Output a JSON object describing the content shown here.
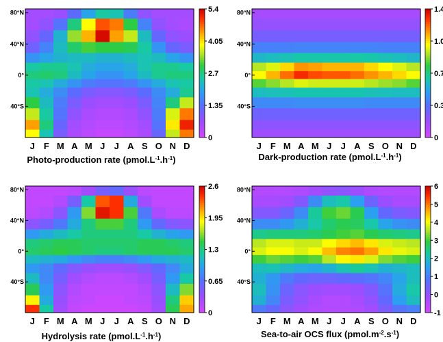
{
  "chart_data": [
    {
      "type": "heatmap",
      "title_parts": [
        "Photo-production rate (pmol.L",
        "-1",
        ".h",
        "-1",
        ")"
      ],
      "x": [
        "J",
        "F",
        "M",
        "A",
        "M",
        "J",
        "J",
        "A",
        "S",
        "O",
        "N",
        "D"
      ],
      "ylabels": [
        "80°N",
        "40°N",
        "0°",
        "40°S"
      ],
      "colorbar_ticks": [
        "5.4",
        "4.05",
        "2.7",
        "1.35",
        "0"
      ],
      "vmin": 0,
      "vmax": 5.4,
      "rows_lat": [
        80,
        65,
        50,
        35,
        22,
        10,
        0,
        -10,
        -22,
        -35,
        -50,
        -65,
        -75
      ],
      "values": [
        [
          0.6,
          0.6,
          0.7,
          1.3,
          2.0,
          2.5,
          2.4,
          1.5,
          0.8,
          0.6,
          0.6,
          0.6
        ],
        [
          0.6,
          0.8,
          1.4,
          2.7,
          3.9,
          4.8,
          4.6,
          3.0,
          1.6,
          0.8,
          0.6,
          0.5
        ],
        [
          0.8,
          1.2,
          2.2,
          3.4,
          4.3,
          5.3,
          4.4,
          3.6,
          2.3,
          1.2,
          0.8,
          0.7
        ],
        [
          1.1,
          1.6,
          2.3,
          2.8,
          3.1,
          3.0,
          3.0,
          2.9,
          2.5,
          1.8,
          1.2,
          1.0
        ],
        [
          1.8,
          2.0,
          2.2,
          2.3,
          2.3,
          2.2,
          2.2,
          2.3,
          2.4,
          2.3,
          2.0,
          1.8
        ],
        [
          2.5,
          2.6,
          2.6,
          2.4,
          2.1,
          2.0,
          2.0,
          2.1,
          2.4,
          2.6,
          2.6,
          2.5
        ],
        [
          2.7,
          2.8,
          2.7,
          2.3,
          2.0,
          1.8,
          1.8,
          2.0,
          2.3,
          2.6,
          2.7,
          2.7
        ],
        [
          2.5,
          2.4,
          2.1,
          1.8,
          1.5,
          1.4,
          1.4,
          1.5,
          1.8,
          2.1,
          2.4,
          2.5
        ],
        [
          2.4,
          2.1,
          1.7,
          1.3,
          1.0,
          0.9,
          0.9,
          1.0,
          1.3,
          1.7,
          2.1,
          2.6
        ],
        [
          3.0,
          2.3,
          1.5,
          1.0,
          0.7,
          0.6,
          0.6,
          0.7,
          1.0,
          1.6,
          2.7,
          3.6
        ],
        [
          3.6,
          2.5,
          1.4,
          0.8,
          0.5,
          0.4,
          0.4,
          0.5,
          0.8,
          1.5,
          3.7,
          4.6
        ],
        [
          4.4,
          2.7,
          1.2,
          0.6,
          0.4,
          0.3,
          0.3,
          0.4,
          0.6,
          1.4,
          4.0,
          5.1
        ],
        [
          3.9,
          2.4,
          1.0,
          0.5,
          0.3,
          0.2,
          0.2,
          0.3,
          0.5,
          1.2,
          3.6,
          4.6
        ]
      ]
    },
    {
      "type": "heatmap",
      "title_parts": [
        "Dark-production rate (pmol.L",
        "-1",
        ".h",
        "-1",
        ")"
      ],
      "x": [
        "J",
        "F",
        "M",
        "A",
        "M",
        "J",
        "J",
        "A",
        "S",
        "O",
        "N",
        "D"
      ],
      "ylabels": [
        "80°N",
        "40°N",
        "0°",
        "40°S"
      ],
      "colorbar_ticks": [
        "1.45",
        "1.08",
        "0.72",
        "0.36",
        "0"
      ],
      "vmin": 0,
      "vmax": 1.45,
      "rows_lat": [
        80,
        65,
        50,
        35,
        22,
        10,
        0,
        -10,
        -22,
        -35,
        -50,
        -65,
        -75
      ],
      "values": [
        [
          0.15,
          0.15,
          0.15,
          0.15,
          0.15,
          0.15,
          0.15,
          0.15,
          0.15,
          0.15,
          0.15,
          0.15
        ],
        [
          0.2,
          0.2,
          0.2,
          0.2,
          0.2,
          0.2,
          0.2,
          0.2,
          0.2,
          0.2,
          0.2,
          0.2
        ],
        [
          0.28,
          0.28,
          0.28,
          0.28,
          0.28,
          0.28,
          0.28,
          0.28,
          0.28,
          0.28,
          0.28,
          0.28
        ],
        [
          0.42,
          0.42,
          0.42,
          0.43,
          0.43,
          0.43,
          0.43,
          0.43,
          0.43,
          0.42,
          0.42,
          0.42
        ],
        [
          0.6,
          0.62,
          0.64,
          0.66,
          0.66,
          0.66,
          0.66,
          0.67,
          0.66,
          0.64,
          0.62,
          0.6
        ],
        [
          0.95,
          1.0,
          1.1,
          1.2,
          1.18,
          1.15,
          1.15,
          1.15,
          1.1,
          1.05,
          1.0,
          0.95
        ],
        [
          1.05,
          1.15,
          1.25,
          1.35,
          1.3,
          1.28,
          1.28,
          1.25,
          1.2,
          1.15,
          1.1,
          1.05
        ],
        [
          0.85,
          0.9,
          0.95,
          1.0,
          0.98,
          0.98,
          0.98,
          0.98,
          0.95,
          0.92,
          0.9,
          0.85
        ],
        [
          0.62,
          0.63,
          0.64,
          0.65,
          0.65,
          0.65,
          0.65,
          0.65,
          0.64,
          0.63,
          0.62,
          0.62
        ],
        [
          0.45,
          0.45,
          0.45,
          0.46,
          0.46,
          0.46,
          0.46,
          0.46,
          0.45,
          0.45,
          0.45,
          0.45
        ],
        [
          0.3,
          0.3,
          0.3,
          0.3,
          0.3,
          0.3,
          0.3,
          0.3,
          0.3,
          0.3,
          0.3,
          0.3
        ],
        [
          0.22,
          0.22,
          0.22,
          0.22,
          0.22,
          0.22,
          0.22,
          0.22,
          0.22,
          0.22,
          0.22,
          0.22
        ],
        [
          0.18,
          0.18,
          0.18,
          0.18,
          0.18,
          0.18,
          0.18,
          0.18,
          0.18,
          0.18,
          0.18,
          0.18
        ]
      ]
    },
    {
      "type": "heatmap",
      "title_parts": [
        "Hydrolysis rate (pmol.L",
        "-1",
        ".h",
        "-1",
        ")"
      ],
      "x": [
        "J",
        "F",
        "M",
        "A",
        "M",
        "J",
        "J",
        "A",
        "S",
        "O",
        "N",
        "D"
      ],
      "ylabels": [
        "80°N",
        "40°N",
        "0°",
        "40°S"
      ],
      "colorbar_ticks": [
        "2.6",
        "1.95",
        "1.3",
        "0.65",
        "0"
      ],
      "vmin": 0,
      "vmax": 2.6,
      "rows_lat": [
        80,
        65,
        50,
        35,
        22,
        10,
        0,
        -10,
        -22,
        -35,
        -50,
        -65,
        -75
      ],
      "values": [
        [
          0.1,
          0.1,
          0.1,
          0.15,
          0.3,
          0.5,
          0.6,
          0.35,
          0.15,
          0.1,
          0.1,
          0.1
        ],
        [
          0.1,
          0.1,
          0.2,
          0.5,
          1.2,
          2.3,
          2.4,
          1.0,
          0.3,
          0.1,
          0.1,
          0.1
        ],
        [
          0.15,
          0.2,
          0.4,
          0.9,
          1.6,
          2.5,
          2.4,
          1.5,
          0.7,
          0.25,
          0.15,
          0.15
        ],
        [
          0.4,
          0.5,
          0.7,
          1.0,
          1.3,
          1.5,
          1.5,
          1.3,
          0.9,
          0.6,
          0.45,
          0.4
        ],
        [
          0.9,
          1.0,
          1.1,
          1.2,
          1.3,
          1.3,
          1.3,
          1.3,
          1.2,
          1.05,
          0.95,
          0.9
        ],
        [
          1.3,
          1.35,
          1.4,
          1.4,
          1.35,
          1.35,
          1.35,
          1.35,
          1.4,
          1.4,
          1.35,
          1.3
        ],
        [
          1.35,
          1.4,
          1.45,
          1.4,
          1.35,
          1.3,
          1.3,
          1.35,
          1.4,
          1.4,
          1.4,
          1.35
        ],
        [
          1.1,
          1.05,
          1.0,
          0.9,
          0.8,
          0.75,
          0.75,
          0.8,
          0.9,
          1.0,
          1.05,
          1.1
        ],
        [
          0.9,
          0.8,
          0.6,
          0.45,
          0.35,
          0.3,
          0.3,
          0.35,
          0.45,
          0.6,
          0.8,
          1.0
        ],
        [
          1.1,
          0.8,
          0.5,
          0.3,
          0.2,
          0.15,
          0.15,
          0.2,
          0.3,
          0.5,
          0.9,
          1.2
        ],
        [
          1.4,
          0.9,
          0.4,
          0.2,
          0.1,
          0.1,
          0.1,
          0.1,
          0.2,
          0.4,
          1.1,
          1.6
        ],
        [
          1.9,
          1.0,
          0.35,
          0.15,
          0.1,
          0.05,
          0.05,
          0.1,
          0.15,
          0.35,
          1.3,
          2.0
        ],
        [
          2.4,
          1.2,
          0.3,
          0.1,
          0.05,
          0.05,
          0.05,
          0.05,
          0.1,
          0.3,
          1.4,
          2.1
        ]
      ]
    },
    {
      "type": "heatmap",
      "title_parts": [
        "Sea-to-air OCS flux (pmol.m",
        "-2",
        ".s",
        "-1",
        ")"
      ],
      "x": [
        "J",
        "F",
        "M",
        "A",
        "M",
        "J",
        "J",
        "A",
        "S",
        "O",
        "N",
        "D"
      ],
      "ylabels": [
        "80°N",
        "40°N",
        "0°",
        "40°S"
      ],
      "colorbar_ticks": [
        "6",
        "5",
        "4",
        "3",
        "2",
        "1",
        "0",
        "-1"
      ],
      "vmin": -1,
      "vmax": 6,
      "rows_lat": [
        80,
        65,
        50,
        35,
        22,
        10,
        0,
        -10,
        -22,
        -35,
        -50,
        -65,
        -75
      ],
      "values": [
        [
          -0.5,
          -0.5,
          -0.5,
          -0.4,
          -0.2,
          0.0,
          0.1,
          -0.1,
          -0.4,
          -0.5,
          -0.5,
          -0.5
        ],
        [
          -0.3,
          -0.3,
          -0.2,
          0.2,
          1.2,
          2.0,
          2.2,
          1.5,
          0.5,
          -0.1,
          -0.3,
          -0.3
        ],
        [
          0.2,
          0.2,
          0.5,
          1.2,
          2.3,
          3.0,
          3.2,
          2.8,
          1.5,
          0.6,
          0.3,
          0.2
        ],
        [
          1.2,
          1.2,
          1.4,
          1.8,
          2.2,
          2.6,
          2.8,
          2.7,
          2.2,
          1.6,
          1.3,
          1.2
        ],
        [
          2.4,
          2.5,
          2.5,
          2.5,
          2.6,
          2.8,
          3.0,
          3.1,
          2.8,
          2.6,
          2.5,
          2.4
        ],
        [
          3.6,
          3.8,
          3.8,
          3.7,
          3.7,
          4.0,
          4.3,
          4.5,
          4.2,
          3.8,
          3.7,
          3.6
        ],
        [
          3.8,
          4.0,
          4.0,
          3.8,
          4.0,
          4.5,
          4.9,
          5.0,
          4.7,
          4.2,
          3.9,
          3.8
        ],
        [
          3.0,
          3.2,
          3.1,
          3.0,
          3.1,
          3.6,
          4.1,
          4.2,
          3.8,
          3.3,
          3.1,
          3.0
        ],
        [
          2.0,
          2.1,
          1.9,
          1.7,
          1.6,
          1.8,
          2.1,
          2.3,
          2.1,
          1.8,
          1.9,
          2.0
        ],
        [
          1.8,
          1.4,
          0.9,
          0.6,
          0.5,
          0.5,
          0.6,
          0.7,
          0.8,
          1.1,
          1.6,
          2.0
        ],
        [
          2.0,
          1.3,
          0.5,
          0.1,
          -0.1,
          -0.2,
          -0.2,
          -0.1,
          0.2,
          0.8,
          1.7,
          2.2
        ],
        [
          1.8,
          1.1,
          0.3,
          0.0,
          -0.3,
          -0.5,
          -0.5,
          -0.3,
          0.0,
          0.6,
          1.5,
          2.0
        ],
        [
          0.9,
          0.6,
          0.1,
          -0.2,
          -0.4,
          -0.5,
          -0.5,
          -0.4,
          -0.2,
          0.3,
          0.8,
          1.0
        ]
      ]
    }
  ]
}
